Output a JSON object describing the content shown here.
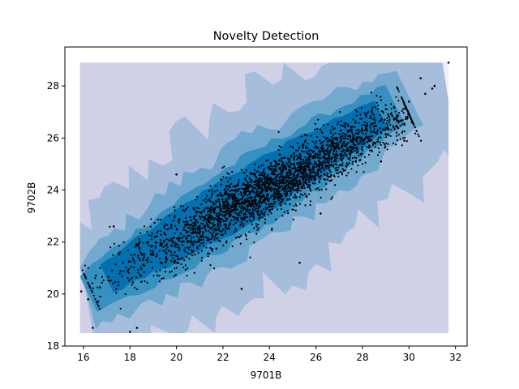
{
  "chart_data": {
    "type": "scatter",
    "title": "Novelty Detection",
    "xlabel": "9701B",
    "ylabel": "9702B",
    "xlim": [
      15.2,
      32.5
    ],
    "ylim": [
      18.0,
      29.5
    ],
    "x_ticks": [
      "16",
      "18",
      "20",
      "22",
      "24",
      "26",
      "28",
      "30",
      "32"
    ],
    "y_ticks": [
      "18",
      "20",
      "22",
      "24",
      "26",
      "28"
    ],
    "grid": false,
    "contour_extent": {
      "x": [
        15.85,
        31.7
      ],
      "y": [
        18.5,
        28.9
      ]
    },
    "contour_colors": [
      "#f1eef6",
      "#d0d1e6",
      "#a6bddb",
      "#74a9cf",
      "#3690c0",
      "#0570b0"
    ],
    "point_color": "#000000",
    "scatter_description": {
      "trend_line": [
        [
          16.0,
          20.05
        ],
        [
          31.5,
          27.8
        ]
      ],
      "core_band_halfwidth": 0.9,
      "approx_point_count": 3000,
      "outliers": [
        [
          15.9,
          20.1
        ],
        [
          16.2,
          19.8
        ],
        [
          16.4,
          18.7
        ],
        [
          18.0,
          18.55
        ],
        [
          18.3,
          18.7
        ],
        [
          30.5,
          28.3
        ],
        [
          30.7,
          27.7
        ],
        [
          31.0,
          27.9
        ],
        [
          31.1,
          28.0
        ],
        [
          31.7,
          28.9
        ],
        [
          29.8,
          25.9
        ],
        [
          30.0,
          27.4
        ],
        [
          20.0,
          24.6
        ],
        [
          17.3,
          22.6
        ],
        [
          28.8,
          25.1
        ],
        [
          25.3,
          21.2
        ],
        [
          22.8,
          20.2
        ],
        [
          24.2,
          24.8
        ],
        [
          26.2,
          23.1
        ]
      ]
    }
  }
}
